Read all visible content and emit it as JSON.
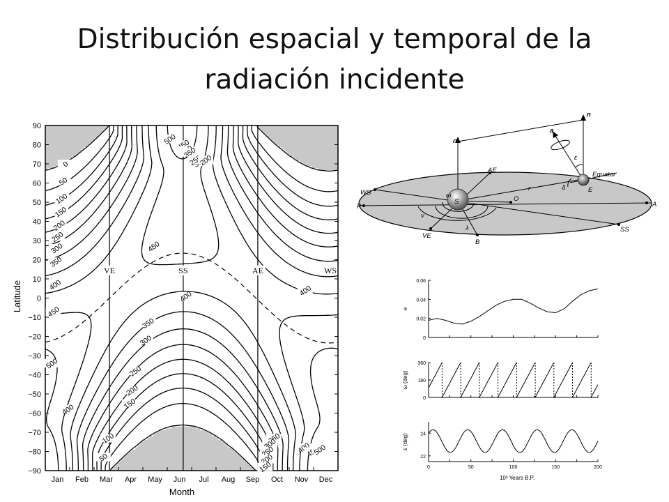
{
  "slide": {
    "title_line1": "Distribución espacial y temporal de la",
    "title_line2": "radiación incidente"
  },
  "chart_data": [
    {
      "type": "heatmap",
      "title": "",
      "xlabel": "Month",
      "ylabel": "Latitude",
      "x_ticks": [
        "Jan",
        "Feb",
        "Mar",
        "Apr",
        "May",
        "Jun",
        "Jul",
        "Aug",
        "Sep",
        "Oct",
        "Nov",
        "Dec"
      ],
      "y_ticks": [
        "90",
        "80",
        "70",
        "60",
        "50",
        "40",
        "30",
        "20",
        "10",
        "0",
        "−10",
        "−20",
        "−30",
        "−40",
        "−50",
        "−60",
        "−70",
        "−80",
        "−90"
      ],
      "ylim": [
        -90,
        90
      ],
      "vertical_markers": [
        "VE",
        "SS",
        "AE",
        "WS"
      ],
      "contour_levels": [
        0,
        50,
        100,
        150,
        200,
        250,
        300,
        350,
        400,
        450,
        500
      ],
      "contour_labels": [
        "0",
        "50",
        "100",
        "150",
        "200",
        "250",
        "300",
        "350",
        "400",
        "450",
        "500"
      ],
      "polar_night_fill": "#c8c8c8"
    },
    {
      "type": "line",
      "title": "",
      "ylabel": "e",
      "ylim": [
        0,
        0.06
      ],
      "y_ticks": [
        "0",
        "0.02",
        "0.04",
        "0.06"
      ],
      "x": [
        0,
        10,
        20,
        30,
        40,
        50,
        60,
        70,
        80,
        90,
        100,
        110,
        120,
        130,
        140,
        150,
        160,
        170,
        180,
        190,
        200
      ],
      "values": [
        0.018,
        0.02,
        0.018,
        0.015,
        0.014,
        0.017,
        0.022,
        0.028,
        0.034,
        0.038,
        0.04,
        0.04,
        0.036,
        0.031,
        0.027,
        0.026,
        0.03,
        0.038,
        0.045,
        0.049,
        0.051
      ]
    },
    {
      "type": "line",
      "title": "",
      "ylabel": "ω (deg)",
      "ylim": [
        0,
        360
      ],
      "y_ticks": [
        "0",
        "180",
        "360"
      ],
      "precession_period_kyr": 22,
      "phase_at_0": 100
    },
    {
      "type": "line",
      "title": "",
      "ylabel": "ε (deg)",
      "xlabel": "10³ Years  B.P.",
      "ylim": [
        21.5,
        25
      ],
      "y_ticks": [
        "22",
        "24"
      ],
      "x_ticks": [
        "0",
        "50",
        "100",
        "150",
        "200"
      ],
      "obliquity_period_kyr": 41,
      "obliquity_mean": 23.3,
      "obliquity_amplitude": 1.0
    }
  ],
  "orbit_diagram": {
    "labels": [
      "n",
      "n",
      "a",
      "ε",
      "Equator",
      "E",
      "δ",
      "AE",
      "r",
      "WS",
      "ω",
      "S",
      "O",
      "A",
      "P",
      "ν",
      "λ",
      "VE",
      "B",
      "SS"
    ]
  }
}
